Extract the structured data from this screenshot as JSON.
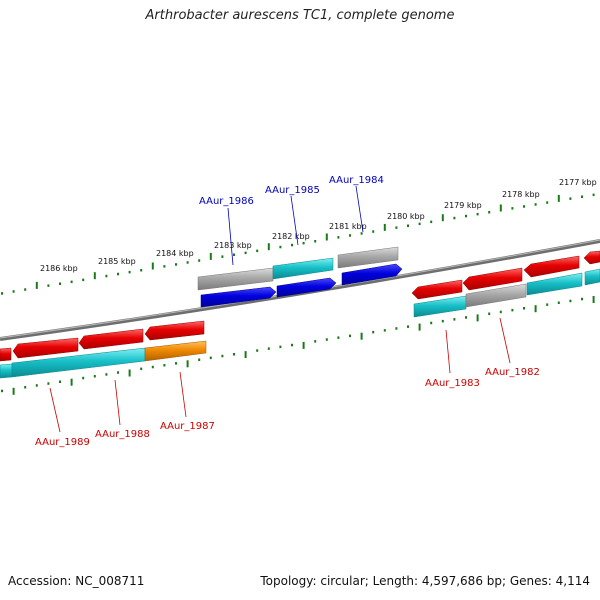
{
  "header": {
    "title": "Arthrobacter aurescens TC1, complete genome"
  },
  "footer": {
    "accession": "Accession: NC_008711",
    "summary": "Topology: circular; Length: 4,597,686 bp; Genes: 4,114"
  },
  "colors": {
    "backbone": "#7a7a7a",
    "red_gene": "#e60000",
    "blue_gene": "#0000dd",
    "cyan_gene": "#18c0c8",
    "grey_gene": "#a0a0a0",
    "orange_gene": "#f08a00",
    "tick_green": "#1a7a1a",
    "label_blue": "#0000bb",
    "label_red": "#cc0000"
  },
  "scale_labels": [
    "2186 kbp",
    "2185 kbp",
    "2184 kbp",
    "2183 kbp",
    "2182 kbp",
    "2181 kbp",
    "2180 kbp",
    "2179 kbp",
    "2178 kbp",
    "2177 kbp"
  ],
  "gene_labels_top": [
    "AAur_1986",
    "AAur_1985",
    "AAur_1984"
  ],
  "gene_labels_bottom": [
    "AAur_1989",
    "AAur_1988",
    "AAur_1987",
    "AAur_1983",
    "AAur_1982"
  ]
}
